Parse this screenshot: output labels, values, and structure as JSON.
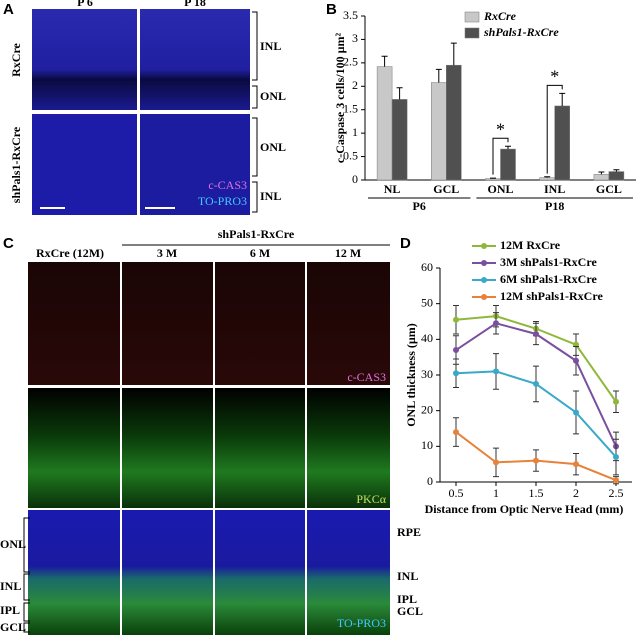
{
  "panel_labels": [
    "A",
    "B",
    "C",
    "D"
  ],
  "panel_a": {
    "columns": [
      "P 6",
      "P 18"
    ],
    "rows": [
      "RxCre",
      "shPals1-RxCre"
    ],
    "layer_labels": [
      "INL",
      "ONL",
      "ONL",
      "INL"
    ],
    "stains": [
      "c-CAS3",
      "TO-PRO3"
    ]
  },
  "panel_c": {
    "group_label": "shPals1-RxCre",
    "columns": [
      "RxCre (12M)",
      "3 M",
      "6 M",
      "12 M"
    ],
    "stains": [
      "c-CAS3",
      "PKCα",
      "TO-PRO3"
    ],
    "left_labels": [
      "ONL",
      "INL",
      "IPL",
      "GCL"
    ],
    "right_labels": [
      "RPE",
      "INL",
      "IPL",
      "GCL"
    ]
  },
  "chart_data": [
    {
      "type": "bar",
      "y_label": "c-Caspase 3 cells/100 µm²",
      "categories": [
        "NL",
        "GCL",
        "ONL",
        "INL",
        "GCL"
      ],
      "group_labels": [
        "P6",
        "P18"
      ],
      "series": [
        {
          "name": "RxCre",
          "color": "#c8c8c8",
          "values": [
            2.42,
            2.08,
            0.03,
            0.05,
            0.12
          ],
          "errors": [
            0.22,
            0.28,
            0.01,
            0.02,
            0.05
          ]
        },
        {
          "name": "shPals1-RxCre",
          "color": "#505050",
          "values": [
            1.72,
            2.45,
            0.66,
            1.58,
            0.18
          ],
          "errors": [
            0.25,
            0.47,
            0.06,
            0.27,
            0.04
          ]
        }
      ],
      "annotations": [
        "*",
        "*"
      ],
      "ylim": [
        0,
        3.5
      ],
      "yticks": [
        0,
        0.5,
        1,
        1.5,
        2,
        2.5,
        3,
        3.5
      ]
    },
    {
      "type": "line",
      "x_label": "Distance from Optic Nerve Head (mm)",
      "y_label": "ONL thickness (µm)",
      "x": [
        0.5,
        1,
        1.5,
        2,
        2.5
      ],
      "series": [
        {
          "name": "12M RxCre",
          "color": "#8fb83a",
          "values": [
            45.5,
            46.5,
            43,
            38.5,
            22.5
          ],
          "errors": [
            4,
            3,
            2,
            3,
            3
          ]
        },
        {
          "name": "3M shPals1-RxCre",
          "color": "#7b4fa0",
          "values": [
            37,
            44.5,
            41.5,
            34,
            10
          ],
          "errors": [
            4,
            3,
            3,
            4,
            4
          ]
        },
        {
          "name": "6M shPals1-RxCre",
          "color": "#3aa8c8",
          "values": [
            30.5,
            31,
            27.5,
            19.5,
            7
          ],
          "errors": [
            4,
            5,
            5,
            6,
            5
          ]
        },
        {
          "name": "12M shPals1-RxCre",
          "color": "#e8823a",
          "values": [
            14,
            5.5,
            6,
            5,
            0.5
          ],
          "errors": [
            4,
            4,
            3,
            3,
            1
          ]
        }
      ],
      "xlim": [
        0.3,
        2.7
      ],
      "xticks": [
        0.5,
        1,
        1.5,
        2,
        2.5
      ],
      "ylim": [
        0,
        60
      ],
      "yticks": [
        0,
        10,
        20,
        30,
        40,
        50,
        60
      ]
    }
  ]
}
